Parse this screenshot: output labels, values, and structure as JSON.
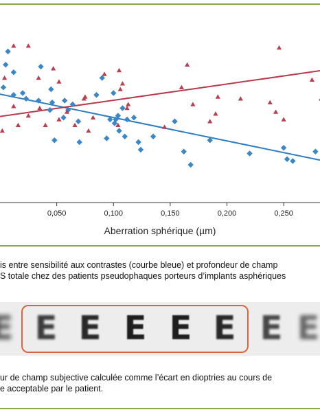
{
  "chart_data": {
    "type": "scatter",
    "xlabel": "Aberration sphérique  (µm)",
    "x_ticks": [
      "0,050",
      "0,100",
      "0,150",
      "0,200",
      "0,250"
    ],
    "x_tick_values": [
      0.05,
      0.1,
      0.15,
      0.2,
      0.25
    ],
    "xlim": [
      0.0,
      0.282
    ],
    "ylim": [
      0,
      100
    ],
    "grid": false,
    "series": [
      {
        "marker": "diamond",
        "color": "#3a86c8",
        "points": [
          [
            0.007,
            80
          ],
          [
            0.005,
            73
          ],
          [
            0.003,
            61
          ],
          [
            0.02,
            58
          ],
          [
            0.045,
            60
          ],
          [
            0.012,
            57
          ],
          [
            0.023,
            55
          ],
          [
            0.034,
            54
          ],
          [
            0.046,
            53
          ],
          [
            0.057,
            54
          ],
          [
            0.044,
            49
          ],
          [
            0.064,
            52
          ],
          [
            0.056,
            45
          ],
          [
            0.06,
            49
          ],
          [
            0.069,
            43
          ],
          [
            0.097,
            44
          ],
          [
            0.104,
            46
          ],
          [
            0.108,
            50
          ],
          [
            0.1,
            58
          ],
          [
            0.118,
            45
          ],
          [
            0.112,
            44
          ],
          [
            0.102,
            44
          ],
          [
            0.101,
            42
          ],
          [
            0.105,
            38
          ],
          [
            0.11,
            35
          ],
          [
            0.135,
            35
          ],
          [
            0.094,
            34
          ],
          [
            0.122,
            32
          ],
          [
            0.048,
            33
          ],
          [
            0.09,
            66
          ],
          [
            0.085,
            57
          ],
          [
            0.07,
            32
          ],
          [
            0.154,
            43
          ],
          [
            0.124,
            28
          ],
          [
            0.162,
            27
          ],
          [
            0.168,
            20
          ],
          [
            0.185,
            33
          ],
          [
            0.22,
            26
          ],
          [
            0.25,
            29
          ],
          [
            0.253,
            23
          ],
          [
            0.258,
            22
          ],
          [
            0.278,
            27
          ],
          [
            0.036,
            72
          ],
          [
            0.012,
            69
          ]
        ]
      },
      {
        "marker": "triangle",
        "color": "#b84050",
        "points": [
          [
            0.012,
            83
          ],
          [
            0.025,
            83
          ],
          [
            0.004,
            66
          ],
          [
            0.034,
            66
          ],
          [
            0.052,
            64
          ],
          [
            0.075,
            56
          ],
          [
            0.092,
            68
          ],
          [
            0.105,
            70
          ],
          [
            0.106,
            60
          ],
          [
            0.108,
            63
          ],
          [
            0.012,
            51
          ],
          [
            0.025,
            46
          ],
          [
            0.04,
            41
          ],
          [
            0.052,
            44
          ],
          [
            0.066,
            41
          ],
          [
            0.074,
            55
          ],
          [
            0.082,
            45
          ],
          [
            0.104,
            41
          ],
          [
            0.112,
            50
          ],
          [
            0.16,
            61
          ],
          [
            0.165,
            73
          ],
          [
            0.17,
            52
          ],
          [
            0.192,
            56
          ],
          [
            0.212,
            55
          ],
          [
            0.238,
            53
          ],
          [
            0.243,
            48
          ],
          [
            0.246,
            82
          ],
          [
            0.25,
            44
          ],
          [
            0.275,
            65
          ],
          [
            0.283,
            55
          ],
          [
            0.185,
            43
          ],
          [
            0.19,
            47
          ],
          [
            0.145,
            40
          ],
          [
            0.035,
            50
          ],
          [
            0.078,
            38
          ],
          [
            0.002,
            38
          ],
          [
            0.047,
            71
          ],
          [
            0.016,
            41
          ],
          [
            0.113,
            52
          ],
          [
            0.059,
            48
          ]
        ]
      }
    ],
    "fits": [
      {
        "color": "#2e7cc2",
        "x": [
          0.0,
          0.282
        ],
        "y": [
          57.4,
          22.5
        ]
      },
      {
        "color": "#b83a4a",
        "x": [
          0.0,
          0.282
        ],
        "y": [
          45.6,
          69.8
        ]
      }
    ]
  },
  "caption1": {
    "line1": "is entre sensibilité aux contrastes (courbe bleue) et profondeur de champ",
    "line2": "S totale chez des patients pseudophaques porteurs d’implants asphériques"
  },
  "strip": {
    "letters": [
      "E",
      "E",
      "E",
      "E",
      "E",
      "E",
      "E",
      "E",
      "E"
    ]
  },
  "caption2": {
    "line1": "ur de champ subjective calculée comme l’écart en dioptries au cours de",
    "line2": "e acceptable par le patient."
  }
}
